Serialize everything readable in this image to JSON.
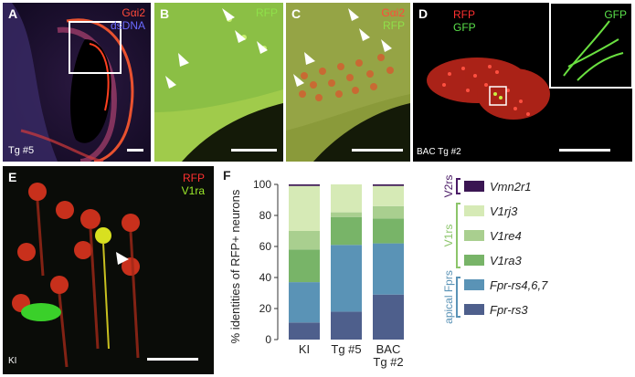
{
  "panels": {
    "A": {
      "label": "A",
      "channels": [
        "Gαi2",
        "dsDNA"
      ],
      "channel_colors": [
        "#ff4a3a",
        "#6a6aff"
      ],
      "caption": "Tg #5"
    },
    "B": {
      "label": "B",
      "channels": [
        "RFP"
      ],
      "channel_colors": [
        "#8fe04a"
      ]
    },
    "C": {
      "label": "C",
      "channels": [
        "Gαi2",
        "RFP"
      ],
      "channel_colors": [
        "#ff4a3a",
        "#8fe04a"
      ]
    },
    "D": {
      "label": "D",
      "channels": [
        "RFP",
        "GFP"
      ],
      "channel_colors": [
        "#ff3030",
        "#5ae04a"
      ],
      "inset_channel": "GFP",
      "caption": "BAC Tg #2"
    },
    "E": {
      "label": "E",
      "channels": [
        "RFP",
        "V1ra"
      ],
      "channel_colors": [
        "#ff3030",
        "#9be82a"
      ],
      "caption": "KI"
    },
    "F": {
      "label": "F"
    }
  },
  "chart_data": {
    "type": "bar",
    "stacked": true,
    "categories": [
      "KI",
      "Tg #5",
      "BAC Tg #2"
    ],
    "ylabel": "% identities of RFP+ neurons",
    "ylim": [
      0,
      100
    ],
    "yticks": [
      "0",
      "20",
      "40",
      "60",
      "80",
      "100"
    ],
    "series": [
      {
        "name": "Fpr-rs3",
        "color": "#4e5f8c",
        "values": [
          11,
          18,
          29
        ]
      },
      {
        "name": "Fpr-rs4,6,7",
        "color": "#5a93b6",
        "values": [
          26,
          43,
          33
        ]
      },
      {
        "name": "V1ra3",
        "color": "#78b468",
        "values": [
          21,
          18,
          16
        ]
      },
      {
        "name": "V1re4",
        "color": "#a9cf8f",
        "values": [
          12,
          3,
          8
        ]
      },
      {
        "name": "V1rj3",
        "color": "#d6eab6",
        "values": [
          29,
          18,
          13
        ]
      },
      {
        "name": "Vmn2r1",
        "color": "#3a1552",
        "values": [
          1,
          0,
          1
        ]
      }
    ],
    "groups": [
      {
        "label": "V2rs",
        "color": "#4a1a66",
        "members": [
          "Vmn2r1"
        ]
      },
      {
        "label": "V1rs",
        "color": "#8cc56a",
        "members": [
          "V1rj3",
          "V1re4",
          "V1ra3"
        ]
      },
      {
        "label": "apical Fprs",
        "color": "#5a93b6",
        "members": [
          "Fpr-rs4,6,7",
          "Fpr-rs3"
        ]
      }
    ]
  }
}
